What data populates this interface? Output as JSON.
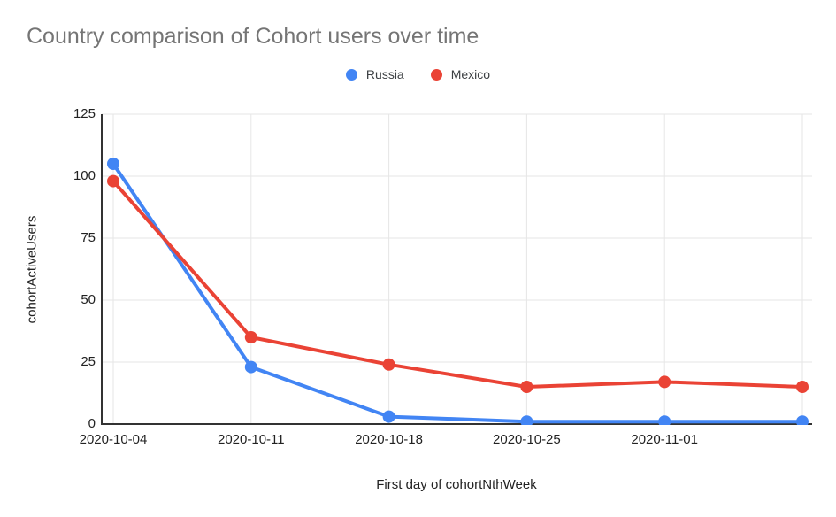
{
  "title": "Country comparison of Cohort users over time",
  "chart_data": {
    "type": "line",
    "title": "Country comparison of Cohort users over time",
    "xlabel": "First day of cohortNthWeek",
    "ylabel": "cohortActiveUsers",
    "categories": [
      "2020-10-04",
      "2020-10-11",
      "2020-10-18",
      "2020-10-25",
      "2020-11-01",
      ""
    ],
    "x_tick_labels": [
      "2020-10-04",
      "2020-10-11",
      "2020-10-18",
      "2020-10-25",
      "2020-11-01"
    ],
    "series": [
      {
        "name": "Russia",
        "color": "#4285f4",
        "values": [
          105,
          23,
          3,
          1,
          1,
          1
        ]
      },
      {
        "name": "Mexico",
        "color": "#ea4335",
        "values": [
          98,
          35,
          24,
          15,
          17,
          15
        ]
      }
    ],
    "ylim": [
      0,
      125
    ],
    "yticks": [
      0,
      25,
      50,
      75,
      100,
      125
    ],
    "grid": true,
    "legend_position": "top",
    "colors": {
      "grid": "#e6e6e6",
      "axis": "#333333",
      "title_text": "#757575",
      "tick_text": "#222222",
      "legend_text": "#3c4043"
    }
  }
}
